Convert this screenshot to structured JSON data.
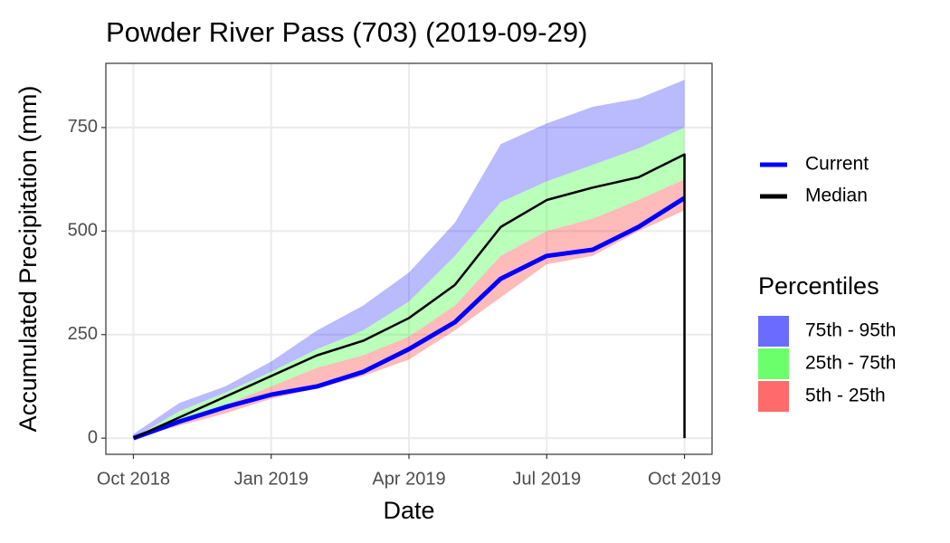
{
  "chart_data": {
    "type": "line",
    "title": "Powder River Pass (703) (2019-09-29)",
    "x_label": "Date",
    "y_label": "Accumulated Precipitation (mm)",
    "x": [
      "2018-10",
      "2018-11",
      "2018-12",
      "2019-01",
      "2019-02",
      "2019-03",
      "2019-04",
      "2019-05",
      "2019-06",
      "2019-07",
      "2019-08",
      "2019-09",
      "2019-10",
      "2019-10"
    ],
    "series": [
      {
        "name": "Current",
        "color": "#0000ff",
        "values": [
          0,
          40,
          75,
          105,
          125,
          160,
          215,
          280,
          385,
          440,
          455,
          510,
          580,
          null
        ]
      },
      {
        "name": "Median",
        "color": "#000000",
        "values": [
          0,
          50,
          100,
          150,
          200,
          235,
          290,
          370,
          510,
          575,
          605,
          630,
          685,
          0
        ]
      }
    ],
    "percentiles_title": "Percentiles",
    "bands": [
      {
        "name": "75th - 95th",
        "color": "#0000ff",
        "low": [
          0,
          65,
          110,
          160,
          215,
          260,
          330,
          440,
          570,
          620,
          660,
          700,
          750,
          null
        ],
        "high": [
          10,
          85,
          125,
          185,
          260,
          320,
          400,
          520,
          710,
          760,
          800,
          820,
          865,
          null
        ]
      },
      {
        "name": "25th - 75th",
        "color": "#00ff00",
        "low": [
          0,
          40,
          80,
          125,
          170,
          200,
          245,
          320,
          440,
          500,
          530,
          575,
          625,
          null
        ],
        "high": [
          0,
          65,
          110,
          160,
          215,
          260,
          330,
          440,
          570,
          620,
          660,
          700,
          750,
          null
        ]
      },
      {
        "name": "5th - 25th",
        "color": "#ff0000",
        "low": [
          0,
          30,
          60,
          95,
          120,
          150,
          190,
          260,
          340,
          420,
          440,
          500,
          550,
          null
        ],
        "high": [
          0,
          40,
          80,
          125,
          170,
          200,
          245,
          320,
          440,
          500,
          530,
          575,
          625,
          null
        ]
      }
    ],
    "ylim": [
      -39,
      905
    ],
    "yticks": [
      0,
      250,
      500,
      750
    ],
    "xticks": [
      {
        "value": "2018-10",
        "label": "Oct 2018"
      },
      {
        "value": "2019-01",
        "label": "Jan 2019"
      },
      {
        "value": "2019-04",
        "label": "Apr 2019"
      },
      {
        "value": "2019-07",
        "label": "Jul 2019"
      },
      {
        "value": "2019-10",
        "label": "Oct 2019"
      }
    ],
    "grid": true
  }
}
